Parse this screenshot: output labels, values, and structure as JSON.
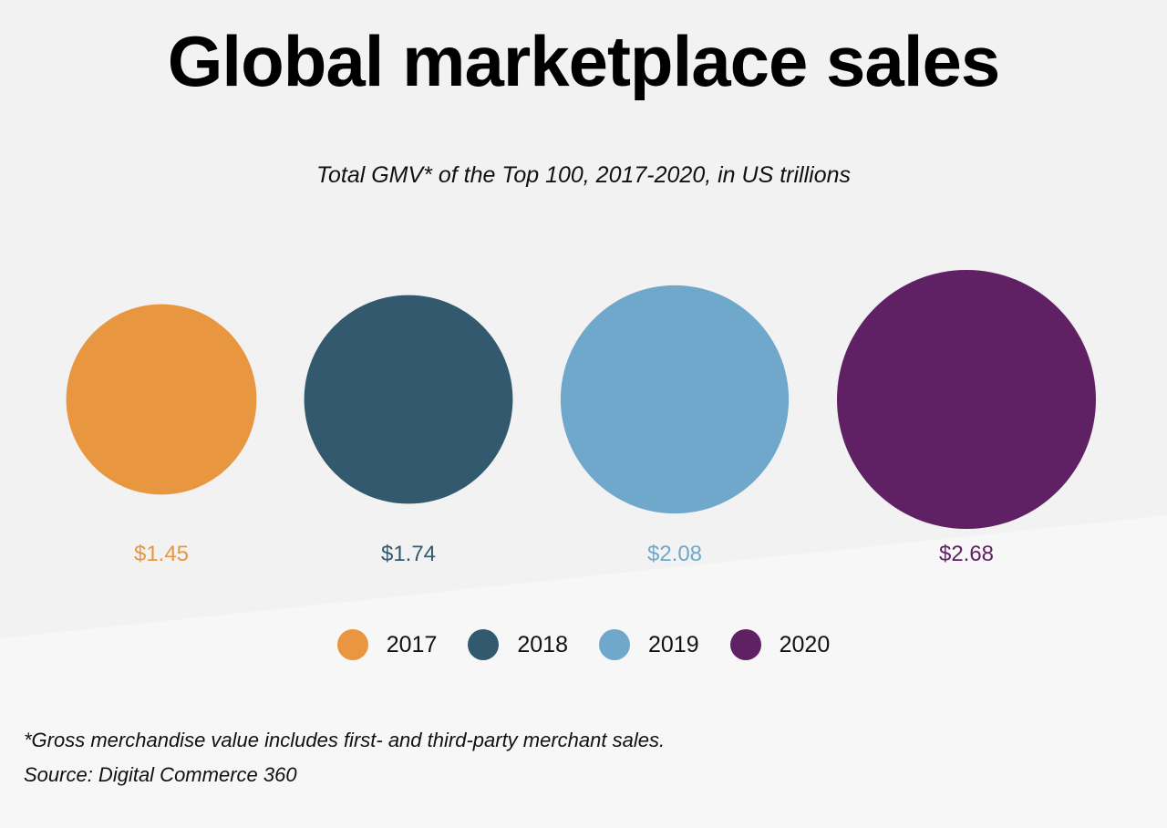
{
  "title": "Global marketplace sales",
  "subtitle": "Total GMV* of the Top 100, 2017-2020, in US trillions",
  "colors": {
    "2017": "#E8963F",
    "2018": "#33596F",
    "2019": "#6FA8CA",
    "2020": "#5F2163",
    "background_top": "#F2F2F2",
    "background_bottom": "#F7F7F7"
  },
  "chart_data": {
    "type": "bubble",
    "categories": [
      "2017",
      "2018",
      "2019",
      "2020"
    ],
    "values": [
      1.45,
      1.74,
      2.08,
      2.68
    ],
    "value_labels": [
      "$1.45",
      "$1.74",
      "$2.08",
      "$2.68"
    ],
    "unit": "US trillions",
    "legend": {
      "position": "bottom-center",
      "entries": [
        "2017",
        "2018",
        "2019",
        "2020"
      ]
    }
  },
  "footnote": {
    "line1": "*Gross merchandise value includes first- and third-party merchant sales.",
    "line2": "Source: Digital Commerce 360"
  }
}
